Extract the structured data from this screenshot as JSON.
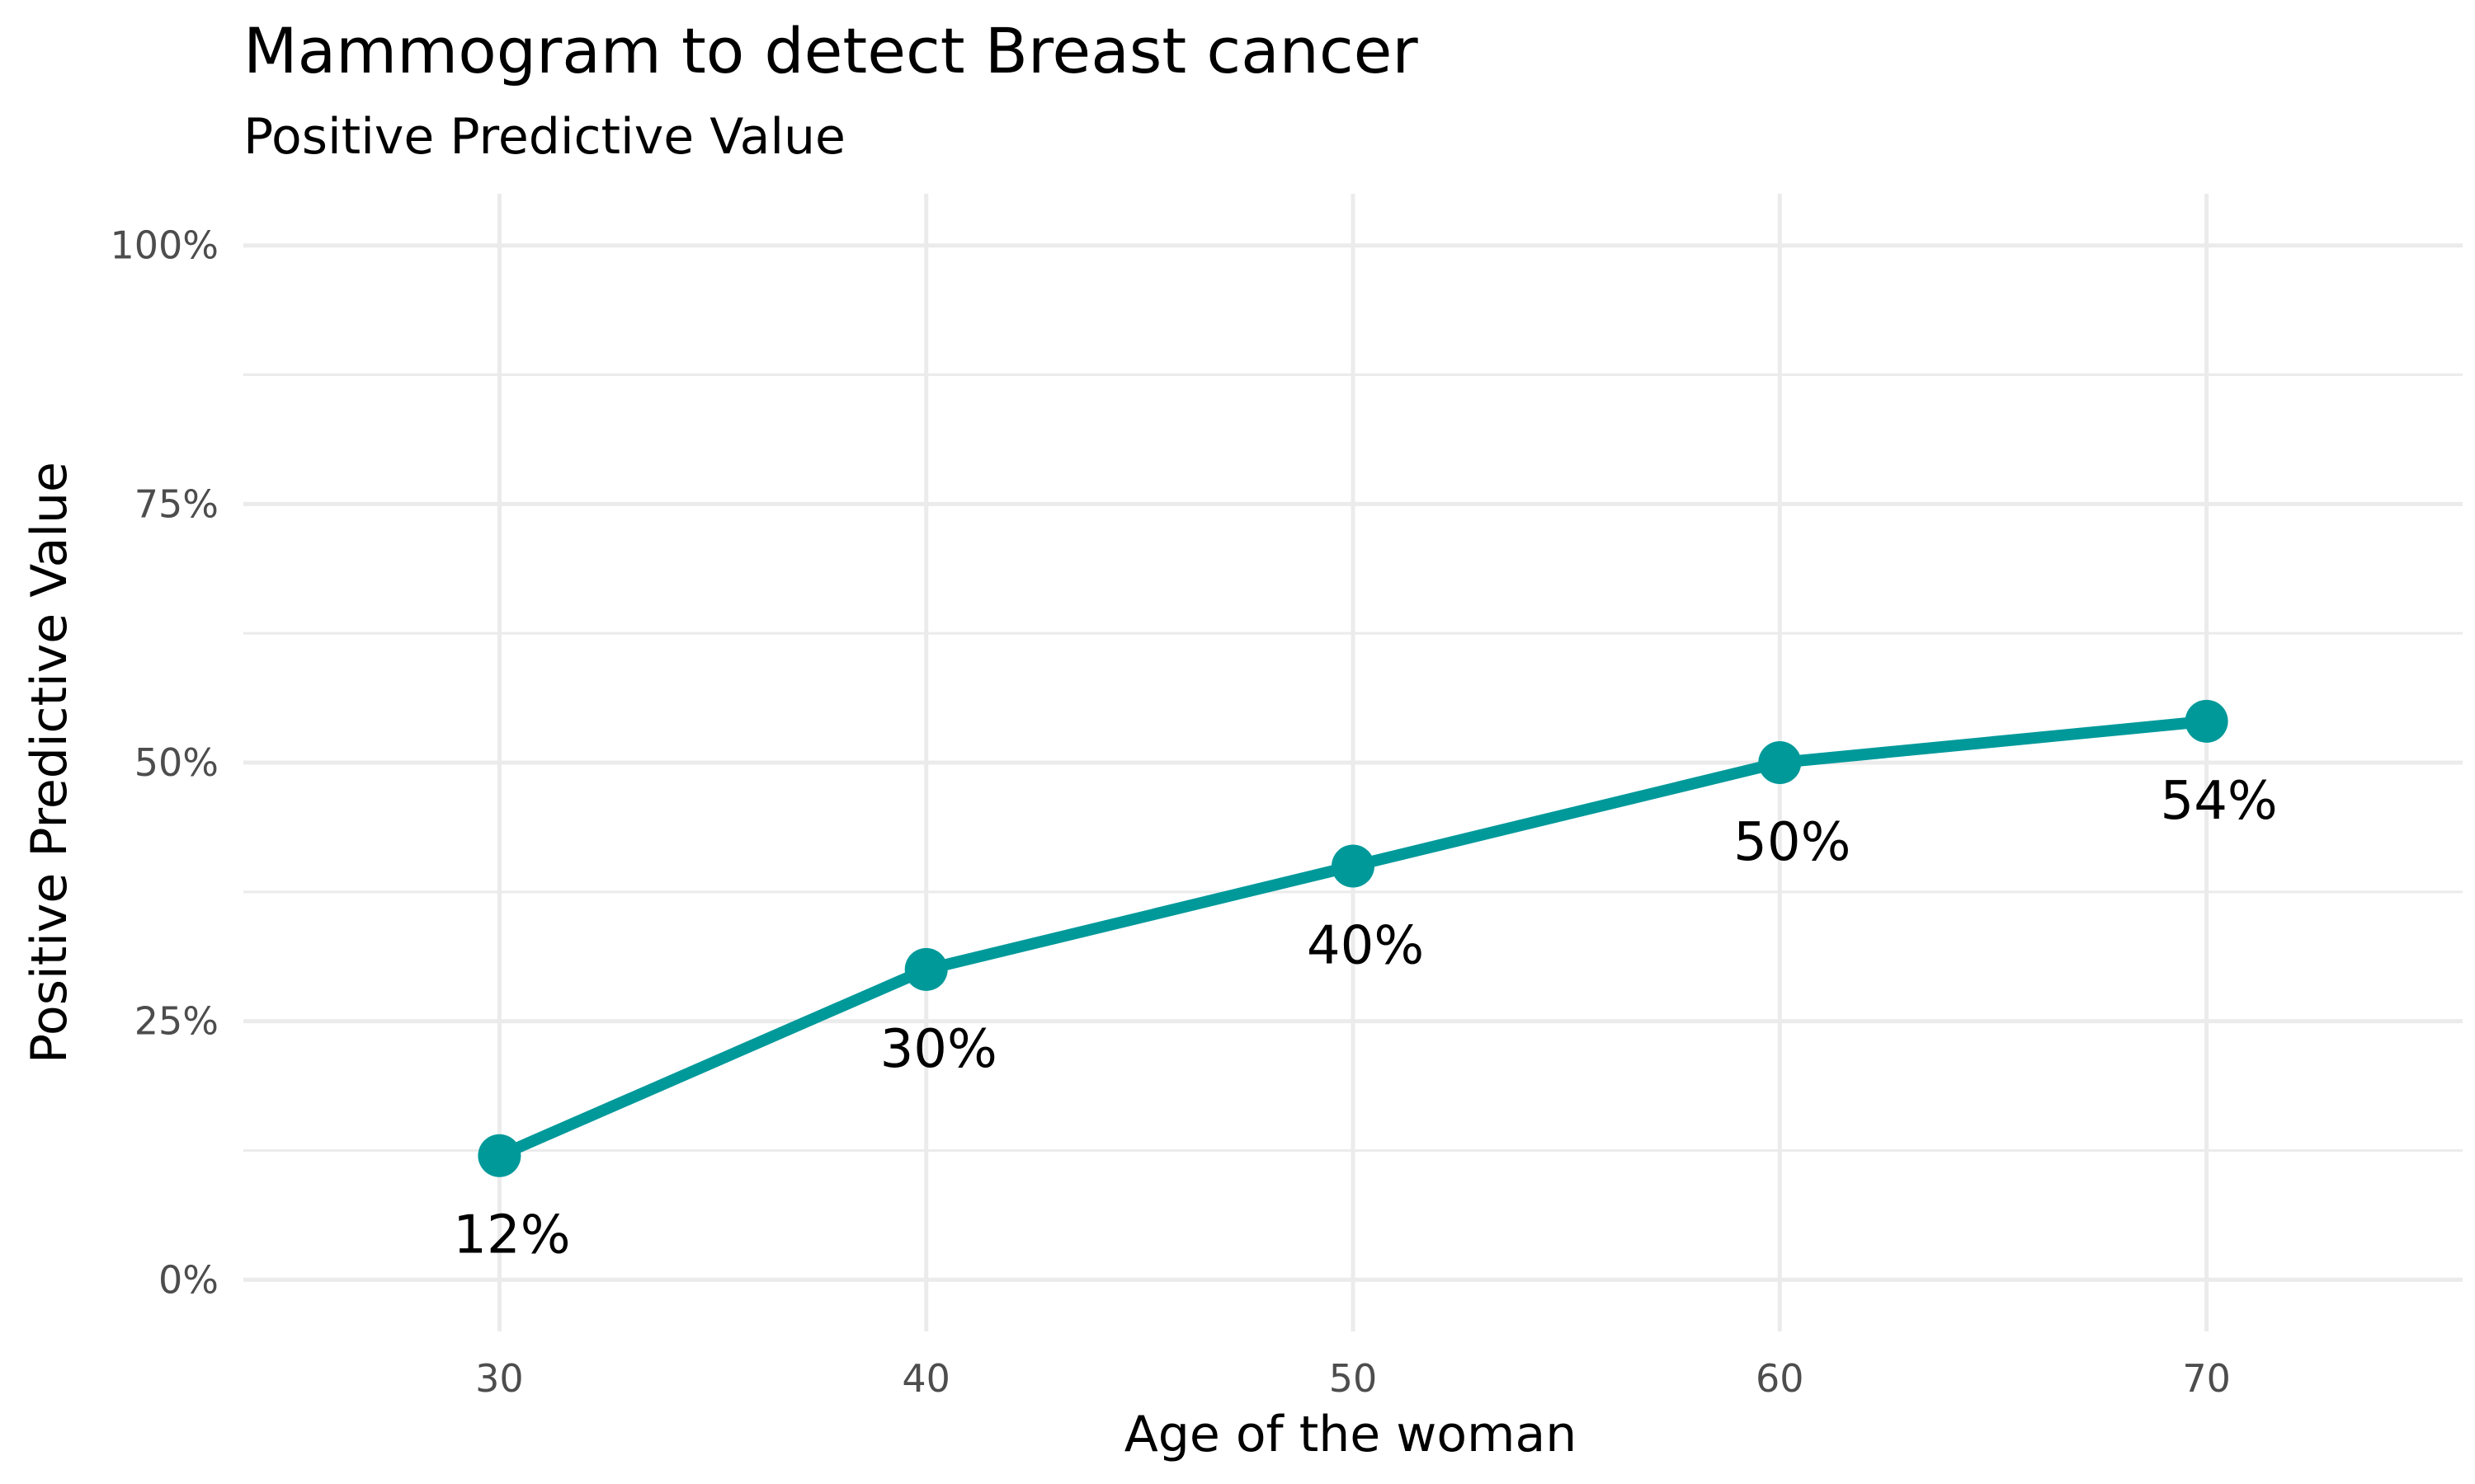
{
  "chart_data": {
    "type": "line",
    "title": "Mammogram to detect Breast cancer",
    "subtitle": "Positive Predictive Value",
    "xlabel": "Age of the woman",
    "ylabel": "Positive Predictive Value",
    "x": [
      30,
      40,
      50,
      60,
      70
    ],
    "series": [
      {
        "values": [
          0.12,
          0.3,
          0.4,
          0.5,
          0.54
        ],
        "labels": [
          "12%",
          "30%",
          "40%",
          "50%",
          "54%"
        ]
      }
    ],
    "xlim": [
      24,
      76
    ],
    "ylim": [
      -0.05,
      1.05
    ],
    "x_ticks": [
      30,
      40,
      50,
      60,
      70
    ],
    "x_tick_labels": [
      "30",
      "40",
      "50",
      "60",
      "70"
    ],
    "y_ticks": [
      0,
      0.25,
      0.5,
      0.75,
      1.0
    ],
    "y_tick_labels": [
      "0%",
      "25%",
      "50%",
      "75%",
      "100%"
    ],
    "grid": true,
    "colors": {
      "line": "#00999a",
      "grid": "#ebebeb",
      "tick_text": "#4d4d4d",
      "text": "#000000"
    }
  }
}
